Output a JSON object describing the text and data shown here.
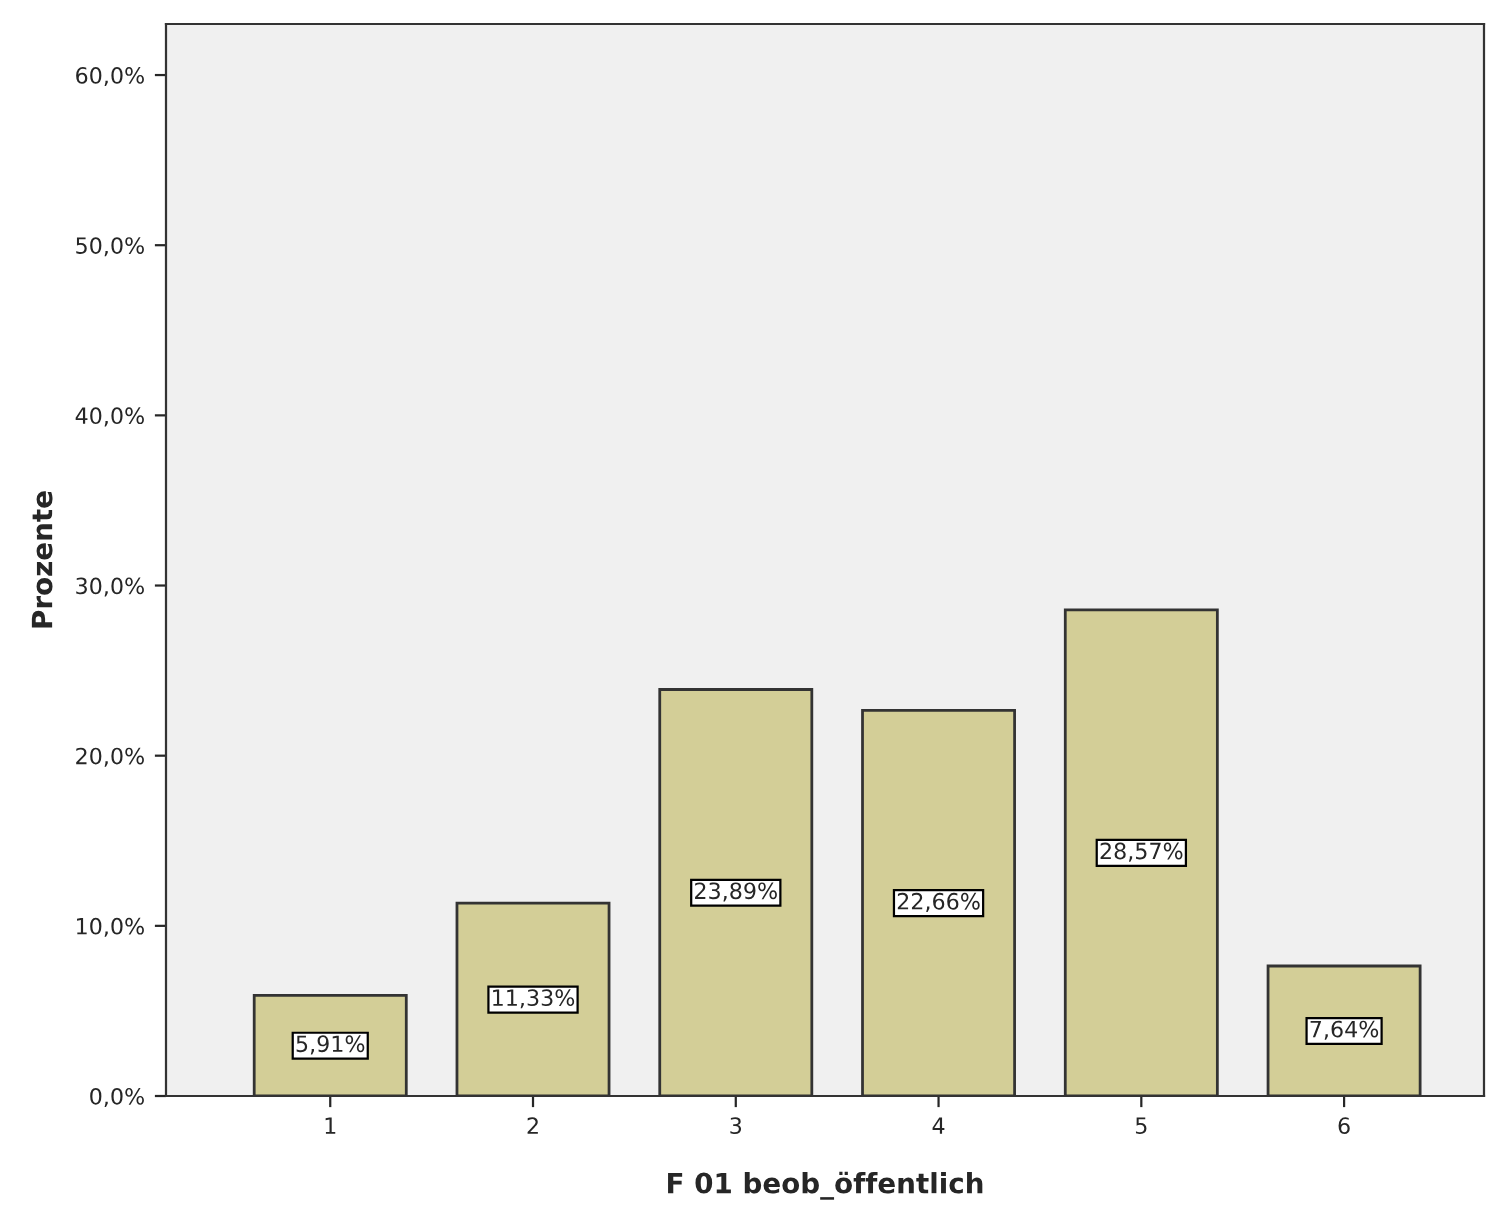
{
  "chart_data": {
    "type": "bar",
    "xlabel": "F 01 beob_öffentlich",
    "ylabel": "Prozente",
    "categories": [
      "1",
      "2",
      "3",
      "4",
      "5",
      "6"
    ],
    "values": [
      5.91,
      11.33,
      23.89,
      22.66,
      28.57,
      7.64
    ],
    "value_labels": [
      "5,91%",
      "11,33%",
      "23,89%",
      "22,66%",
      "28,57%",
      "7,64%"
    ],
    "color": "#d3ce97",
    "ylim": [
      0,
      63
    ],
    "yticks": [
      {
        "value": 0,
        "label": "0,0%"
      },
      {
        "value": 10,
        "label": "10,0%"
      },
      {
        "value": 20,
        "label": "20,0%"
      },
      {
        "value": 30,
        "label": "30,0%"
      },
      {
        "value": 40,
        "label": "40,0%"
      },
      {
        "value": 50,
        "label": "50,0%"
      },
      {
        "value": 60,
        "label": "60,0%"
      }
    ],
    "grid": false
  }
}
